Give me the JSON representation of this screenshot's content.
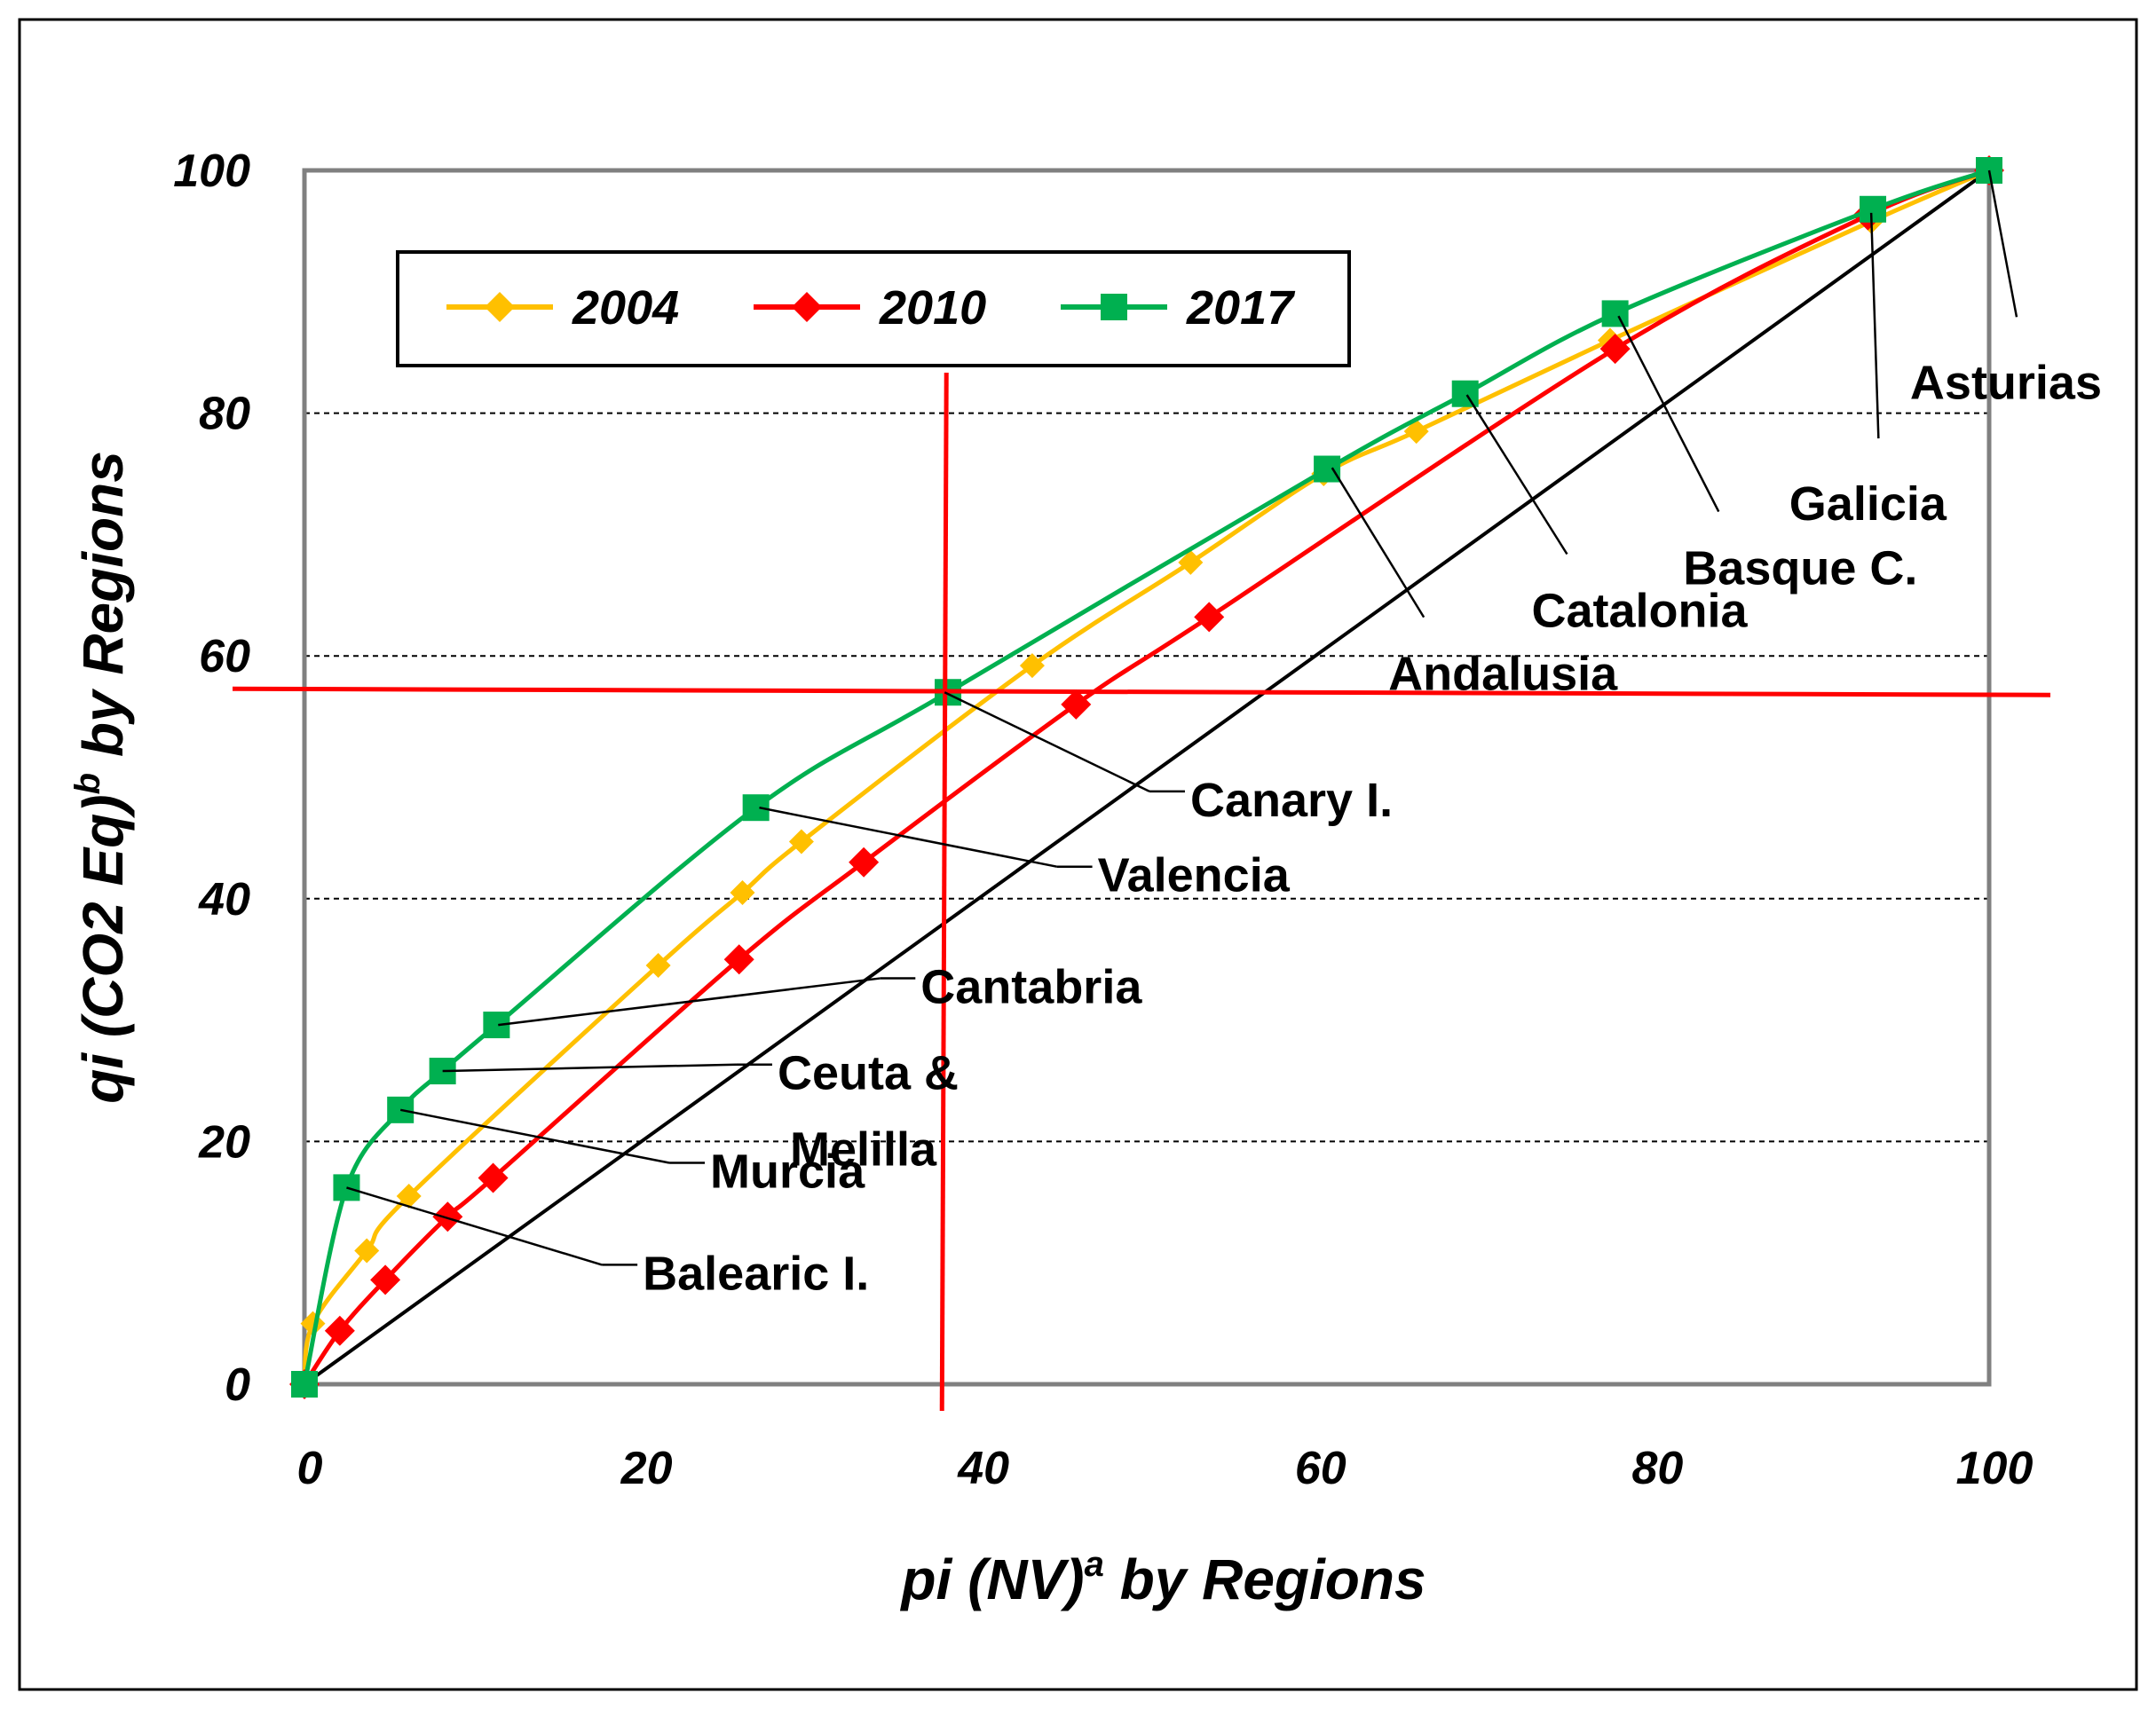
{
  "chart_data": {
    "type": "line",
    "title": "",
    "xlabel": {
      "prefix": "pi (NV)",
      "sup": "a",
      "suffix": " by Regions"
    },
    "ylabel": {
      "prefix": "qi (CO2 Eq)",
      "sup": "b",
      "suffix": " by Regions"
    },
    "xlim": [
      0,
      100
    ],
    "ylim": [
      0,
      100
    ],
    "x_ticks": [
      "0",
      "20",
      "40",
      "60",
      "80",
      "100"
    ],
    "y_ticks": [
      "0",
      "20",
      "40",
      "60",
      "80",
      "100"
    ],
    "grid": "horizontal dashed",
    "legend_position": "top-left",
    "equality_line": [
      [
        0,
        0
      ],
      [
        100,
        100
      ]
    ],
    "reference_lines": {
      "vertical_x": 38,
      "horizontal_y": 57
    },
    "series": [
      {
        "name": "2004",
        "color": "#FFC000",
        "marker": "diamond",
        "points": [
          [
            0,
            0
          ],
          [
            0.5,
            5
          ],
          [
            3.7,
            11
          ],
          [
            6.2,
            15.5
          ],
          [
            21,
            34.5
          ],
          [
            26,
            40.5
          ],
          [
            29.5,
            44.7
          ],
          [
            43.2,
            59.2
          ],
          [
            52.6,
            67.7
          ],
          [
            60.5,
            75
          ],
          [
            66,
            78.5
          ],
          [
            77.5,
            86
          ],
          [
            93,
            95.8
          ],
          [
            100,
            100
          ]
        ]
      },
      {
        "name": "2010",
        "color": "#FF0000",
        "marker": "diamond",
        "points": [
          [
            0,
            0
          ],
          [
            2.1,
            4.4
          ],
          [
            4.8,
            8.6
          ],
          [
            8.5,
            13.8
          ],
          [
            11.2,
            17
          ],
          [
            25.8,
            35
          ],
          [
            33.2,
            43
          ],
          [
            45.8,
            56
          ],
          [
            53.7,
            63.2
          ],
          [
            77.8,
            85.3
          ],
          [
            92.8,
            96.3
          ],
          [
            100,
            100
          ]
        ]
      },
      {
        "name": "2017",
        "color": "#00B050",
        "marker": "square",
        "points": [
          [
            0,
            0
          ],
          [
            2.5,
            16.2
          ],
          [
            5.7,
            22.6
          ],
          [
            8.2,
            25.8
          ],
          [
            11.4,
            29.6
          ],
          [
            26.8,
            47.5
          ],
          [
            38.2,
            57
          ],
          [
            60.7,
            75.4
          ],
          [
            68.9,
            81.6
          ],
          [
            77.8,
            88.2
          ],
          [
            93.1,
            96.8
          ],
          [
            100,
            100
          ]
        ]
      }
    ],
    "annotations": [
      {
        "label_lines": [
          "Asturias"
        ],
        "point": [
          100,
          100
        ],
        "text_anchor": [
          101,
          82.8
        ]
      },
      {
        "label_lines": [
          "Galicia"
        ],
        "point": [
          93,
          96.5
        ],
        "text_anchor": [
          92.8,
          72.8
        ]
      },
      {
        "label_lines": [
          "Basque C."
        ],
        "point": [
          78,
          88
        ],
        "text_anchor": [
          85,
          67.5
        ]
      },
      {
        "label_lines": [
          "Catalonia"
        ],
        "point": [
          69,
          81.5
        ],
        "text_anchor": [
          76,
          64
        ]
      },
      {
        "label_lines": [
          "Andalusia"
        ],
        "point": [
          61,
          75.5
        ],
        "text_anchor": [
          67.5,
          58.8
        ]
      },
      {
        "label_lines": [
          "Canary I."
        ],
        "point": [
          38,
          57
        ],
        "text_anchor": [
          51,
          48.4
        ]
      },
      {
        "label_lines": [
          "Valencia"
        ],
        "point": [
          27,
          47.5
        ],
        "text_anchor": [
          45.5,
          42.2
        ]
      },
      {
        "label_lines": [
          "Cantabria"
        ],
        "point": [
          11.5,
          29.6
        ],
        "text_anchor": [
          35,
          33
        ]
      },
      {
        "label_lines": [
          "Ceuta &",
          "Melilla"
        ],
        "point": [
          8.2,
          25.8
        ],
        "text_anchor": [
          26.5,
          25.9
        ]
      },
      {
        "label_lines": [
          "Murcia"
        ],
        "point": [
          5.7,
          22.6
        ],
        "text_anchor": [
          22.5,
          17.8
        ]
      },
      {
        "label_lines": [
          "Balearic I."
        ],
        "point": [
          2.5,
          16.2
        ],
        "text_anchor": [
          18.5,
          9.4
        ]
      }
    ]
  }
}
